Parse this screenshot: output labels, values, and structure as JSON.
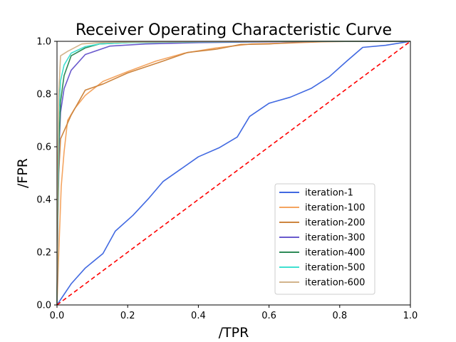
{
  "chart_data": {
    "type": "line",
    "title": "Receiver Operating Characteristic Curve",
    "xlabel": "/TPR",
    "ylabel": "/FPR",
    "xlim": [
      0,
      1
    ],
    "ylim": [
      0,
      1
    ],
    "xticks": [
      "0.0",
      "0.2",
      "0.4",
      "0.6",
      "0.8",
      "1.0"
    ],
    "yticks": [
      "0.0",
      "0.2",
      "0.4",
      "0.6",
      "0.8",
      "1.0"
    ],
    "grid": false,
    "legend_position": "lower-right",
    "reference_line": {
      "x": [
        0,
        1
      ],
      "y": [
        0,
        1
      ],
      "color": "#ff0000",
      "style": "dashed"
    },
    "series": [
      {
        "name": "iteration-1",
        "color": "#4169e1",
        "x": [
          0,
          0.04,
          0.08,
          0.13,
          0.165,
          0.215,
          0.26,
          0.3,
          0.35,
          0.4,
          0.46,
          0.51,
          0.545,
          0.6,
          0.66,
          0.72,
          0.77,
          0.82,
          0.865,
          0.93,
          1.0
        ],
        "y": [
          0,
          0.08,
          0.14,
          0.195,
          0.28,
          0.34,
          0.405,
          0.468,
          0.515,
          0.562,
          0.597,
          0.637,
          0.715,
          0.765,
          0.788,
          0.822,
          0.865,
          0.925,
          0.977,
          0.985,
          1.0
        ]
      },
      {
        "name": "iteration-100",
        "color": "#f4a460",
        "x": [
          0,
          0.005,
          0.012,
          0.02,
          0.03,
          0.05,
          0.08,
          0.13,
          0.2,
          0.28,
          0.36,
          0.45,
          0.55,
          0.65,
          0.75,
          0.85,
          1.0
        ],
        "y": [
          0,
          0.2,
          0.45,
          0.58,
          0.7,
          0.745,
          0.795,
          0.848,
          0.885,
          0.925,
          0.955,
          0.975,
          0.99,
          0.993,
          0.998,
          1.0,
          1.0
        ]
      },
      {
        "name": "iteration-200",
        "color": "#cd853f",
        "x": [
          0,
          0.002,
          0.005,
          0.01,
          0.02,
          0.04,
          0.08,
          0.13,
          0.2,
          0.3,
          0.37,
          0.45,
          0.52,
          0.6,
          0.7,
          0.8,
          1.0
        ],
        "y": [
          0,
          0.3,
          0.5,
          0.63,
          0.66,
          0.72,
          0.815,
          0.838,
          0.88,
          0.925,
          0.958,
          0.97,
          0.988,
          0.99,
          0.998,
          1.0,
          1.0
        ]
      },
      {
        "name": "iteration-300",
        "color": "#6a5acd",
        "x": [
          0,
          0.003,
          0.006,
          0.01,
          0.02,
          0.04,
          0.08,
          0.15,
          0.25,
          0.4,
          0.6,
          0.8,
          1.0
        ],
        "y": [
          0,
          0.4,
          0.6,
          0.73,
          0.82,
          0.89,
          0.95,
          0.982,
          0.99,
          0.995,
          0.998,
          1.0,
          1.0
        ]
      },
      {
        "name": "iteration-400",
        "color": "#2e8b57",
        "x": [
          0,
          0.002,
          0.005,
          0.01,
          0.02,
          0.04,
          0.08,
          0.12,
          0.2,
          0.4,
          0.7,
          1.0
        ],
        "y": [
          0,
          0.3,
          0.6,
          0.77,
          0.87,
          0.945,
          0.975,
          0.99,
          0.995,
          0.998,
          1.0,
          1.0
        ]
      },
      {
        "name": "iteration-500",
        "color": "#40e0d0",
        "x": [
          0,
          0.002,
          0.005,
          0.01,
          0.02,
          0.04,
          0.08,
          0.12,
          0.2,
          0.4,
          0.7,
          1.0
        ],
        "y": [
          0,
          0.4,
          0.72,
          0.85,
          0.91,
          0.955,
          0.98,
          0.99,
          0.995,
          0.998,
          1.0,
          1.0
        ]
      },
      {
        "name": "iteration-600",
        "color": "#d2b48c",
        "x": [
          0,
          0.002,
          0.005,
          0.01,
          0.03,
          0.07,
          0.12,
          0.2,
          0.4,
          0.7,
          1.0
        ],
        "y": [
          0,
          0.5,
          0.8,
          0.945,
          0.962,
          0.99,
          0.995,
          0.997,
          0.999,
          1.0,
          1.0
        ]
      }
    ]
  }
}
